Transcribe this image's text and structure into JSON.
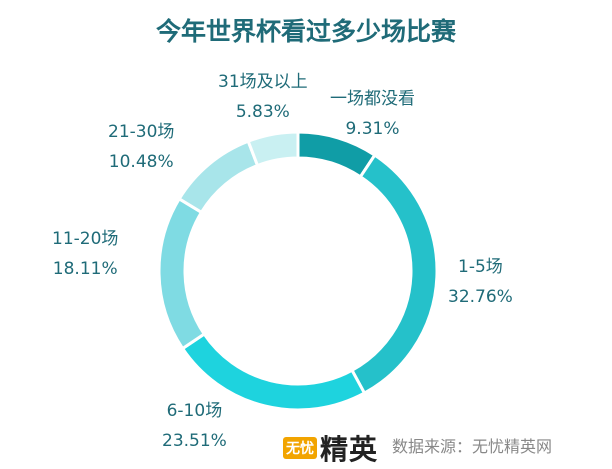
{
  "chart_data": {
    "type": "pie",
    "title": "今年世界杯看过多少场比赛",
    "categories": [
      "一场都没看",
      "1-5场",
      "6-10场",
      "11-20场",
      "21-30场",
      "31场及以上"
    ],
    "values": [
      9.31,
      32.76,
      23.51,
      18.11,
      10.48,
      5.83
    ],
    "value_labels": [
      "9.31%",
      "32.76%",
      "23.51%",
      "18.11%",
      "10.48%",
      "5.83%"
    ],
    "colors": [
      "#109da6",
      "#25c1ca",
      "#1ed3de",
      "#7fdbe3",
      "#a8e5ea",
      "#c9f0f2"
    ],
    "legend": "none"
  },
  "footer": {
    "logo_badge": "无忧",
    "logo_text": "精英",
    "source": "数据来源：无忧精英网"
  }
}
